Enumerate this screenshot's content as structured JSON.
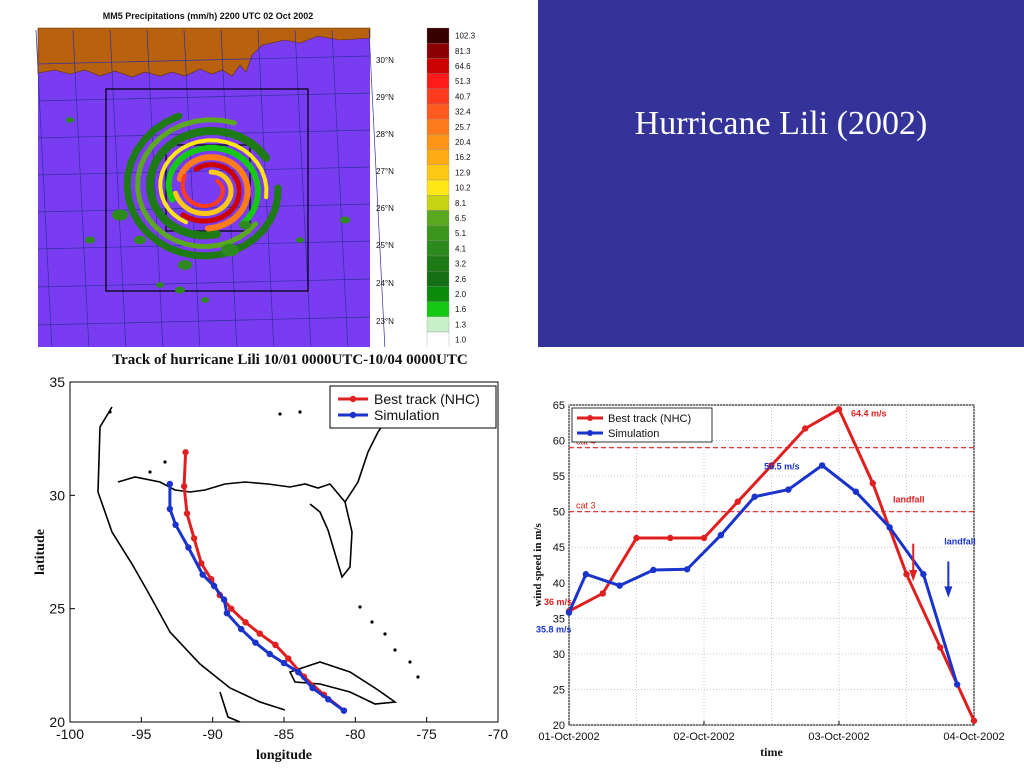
{
  "slide": {
    "title": "Hurricane Lili (2002)"
  },
  "colors": {
    "panel": "#333399",
    "best_track": "#e02020",
    "simulation": "#1a33cc",
    "ocean": "#7a3cf0",
    "land": "#b8620f"
  },
  "chart_data": [
    {
      "type": "heatmap",
      "title": "MM5 Precipitations (mm/h) 2200 UTC 02 Oct 2002",
      "lat_labels": [
        "30°N",
        "29°N",
        "28°N",
        "27°N",
        "26°N",
        "25°N",
        "24°N",
        "23°N"
      ],
      "colorbar": [
        {
          "value": "102.3",
          "color": "#3a0000"
        },
        {
          "value": "81.3",
          "color": "#8b0000"
        },
        {
          "value": "64.6",
          "color": "#cc0000"
        },
        {
          "value": "51.3",
          "color": "#ff1a1a"
        },
        {
          "value": "40.7",
          "color": "#ff3b1f"
        },
        {
          "value": "32.4",
          "color": "#ff5a1f"
        },
        {
          "value": "25.7",
          "color": "#ff7a1a"
        },
        {
          "value": "20.4",
          "color": "#ff9417"
        },
        {
          "value": "16.2",
          "color": "#ffac14"
        },
        {
          "value": "12.9",
          "color": "#ffc814"
        },
        {
          "value": "10.2",
          "color": "#ffe614"
        },
        {
          "value": "8.1",
          "color": "#c8d214"
        },
        {
          "value": "6.5",
          "color": "#5aa81e"
        },
        {
          "value": "5.1",
          "color": "#3c961e"
        },
        {
          "value": "4.1",
          "color": "#2d8a1e"
        },
        {
          "value": "3.2",
          "color": "#1e7a14"
        },
        {
          "value": "2.6",
          "color": "#146e14"
        },
        {
          "value": "2.0",
          "color": "#0a8c0a"
        },
        {
          "value": "1.6",
          "color": "#14c814"
        },
        {
          "value": "1.3",
          "color": "#c8f0c8"
        },
        {
          "value": "1.0",
          "color": "#ffffff"
        }
      ]
    },
    {
      "type": "line",
      "title": "Track of hurricane Lili  10/01 0000UTC-10/04 0000UTC",
      "xlabel": "longitude",
      "ylabel": "latitude",
      "xlim": [
        -100,
        -70
      ],
      "ylim": [
        20,
        35
      ],
      "xticks": [
        "-100",
        "-95",
        "-90",
        "-85",
        "-80",
        "-75",
        "-70"
      ],
      "yticks": [
        "20",
        "25",
        "30",
        "35"
      ],
      "legend": [
        "Best track (NHC)",
        "Simulation"
      ],
      "legend_position": "top-right",
      "series": [
        {
          "name": "Best track (NHC)",
          "points": [
            [
              -80.8,
              20.5
            ],
            [
              -82.2,
              21.2
            ],
            [
              -83.6,
              22.0
            ],
            [
              -84.7,
              22.8
            ],
            [
              -85.6,
              23.4
            ],
            [
              -86.7,
              23.9
            ],
            [
              -87.7,
              24.4
            ],
            [
              -88.7,
              25.0
            ],
            [
              -89.5,
              25.6
            ],
            [
              -90.1,
              26.3
            ],
            [
              -90.8,
              27.0
            ],
            [
              -91.3,
              28.1
            ],
            [
              -91.8,
              29.2
            ],
            [
              -92.0,
              30.4
            ],
            [
              -91.9,
              31.9
            ]
          ]
        },
        {
          "name": "Simulation",
          "points": [
            [
              -80.8,
              20.5
            ],
            [
              -81.9,
              21.0
            ],
            [
              -83.0,
              21.5
            ],
            [
              -84.0,
              22.2
            ],
            [
              -85.0,
              22.6
            ],
            [
              -86.0,
              23.0
            ],
            [
              -87.0,
              23.5
            ],
            [
              -88.0,
              24.1
            ],
            [
              -89.0,
              24.8
            ],
            [
              -89.2,
              25.4
            ],
            [
              -89.9,
              26.0
            ],
            [
              -90.7,
              26.5
            ],
            [
              -91.7,
              27.7
            ],
            [
              -92.6,
              28.7
            ],
            [
              -93.0,
              29.4
            ],
            [
              -93.0,
              30.5
            ]
          ]
        }
      ]
    },
    {
      "type": "line",
      "xlabel": "time",
      "ylabel": "wind speed in m/s",
      "ylim": [
        20,
        65
      ],
      "yticks": [
        "20",
        "25",
        "30",
        "35",
        "40",
        "45",
        "50",
        "55",
        "60",
        "65"
      ],
      "xticks": [
        "01-Oct-2002",
        "02-Oct-2002",
        "03-Oct-2002",
        "04-Oct-2002"
      ],
      "xlim_days": [
        0,
        3
      ],
      "legend": [
        "Best track (NHC)",
        "Simulation"
      ],
      "legend_position": "top-left",
      "grid": true,
      "series": [
        {
          "name": "Best track (NHC)",
          "x_days": [
            0,
            0.25,
            0.5,
            0.75,
            1.0,
            1.25,
            1.5,
            1.75,
            2.0,
            2.25,
            2.5,
            2.75,
            3.0
          ],
          "values": [
            36,
            38.5,
            46.3,
            46.3,
            46.3,
            51.4,
            56.5,
            61.7,
            64.4,
            54.0,
            41.2,
            30.9,
            20.6
          ]
        },
        {
          "name": "Simulation",
          "x_days": [
            0,
            0.125,
            0.375,
            0.625,
            0.875,
            1.125,
            1.375,
            1.625,
            1.875,
            2.125,
            2.375,
            2.625,
            2.875
          ],
          "values": [
            35.8,
            41.2,
            39.6,
            41.8,
            41.9,
            46.7,
            52.1,
            53.1,
            56.5,
            52.8,
            47.8,
            41.2,
            25.7
          ]
        }
      ],
      "reference_lines": [
        {
          "label": "cat 4",
          "value": 59
        },
        {
          "label": "cat 3",
          "value": 50
        }
      ],
      "annotations": {
        "bt_peak": "64.4 m/s",
        "sim_peak": "56.5 m/s",
        "bt_start": "36 m/s",
        "sim_start": "35.8 m/s",
        "bt_landfall": "landfall",
        "sim_landfall": "landfall"
      }
    }
  ]
}
